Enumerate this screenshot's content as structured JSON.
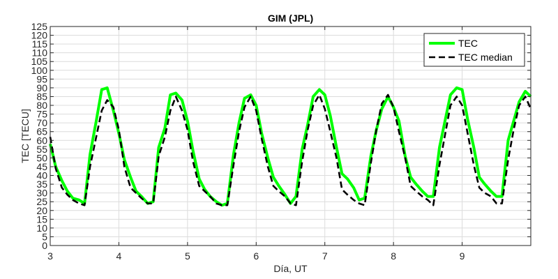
{
  "chart_data": {
    "type": "line",
    "title": "GIM (JPL)",
    "xlabel": "Día, UT",
    "ylabel": "TEC [TECU]",
    "xlim": [
      3,
      10
    ],
    "ylim": [
      0,
      125
    ],
    "x_ticks": [
      3,
      4,
      5,
      6,
      7,
      8,
      9
    ],
    "y_ticks": [
      0,
      5,
      10,
      15,
      20,
      25,
      30,
      35,
      40,
      45,
      50,
      55,
      60,
      65,
      70,
      75,
      80,
      85,
      90,
      95,
      100,
      105,
      110,
      115,
      120,
      125
    ],
    "grid": true,
    "legend_position": "top-right",
    "series": [
      {
        "name": "TEC",
        "color": "#00ff00",
        "style": "solid",
        "x": [
          3.0,
          3.08,
          3.17,
          3.25,
          3.33,
          3.42,
          3.5,
          3.58,
          3.67,
          3.75,
          3.83,
          3.92,
          4.0,
          4.08,
          4.17,
          4.25,
          4.33,
          4.42,
          4.5,
          4.58,
          4.67,
          4.75,
          4.83,
          4.92,
          5.0,
          5.08,
          5.17,
          5.25,
          5.33,
          5.42,
          5.5,
          5.58,
          5.67,
          5.75,
          5.83,
          5.92,
          6.0,
          6.08,
          6.17,
          6.25,
          6.33,
          6.42,
          6.5,
          6.58,
          6.67,
          6.75,
          6.83,
          6.92,
          7.0,
          7.08,
          7.17,
          7.25,
          7.33,
          7.42,
          7.5,
          7.58,
          7.67,
          7.75,
          7.83,
          7.92,
          8.0,
          8.08,
          8.17,
          8.25,
          8.33,
          8.42,
          8.5,
          8.58,
          8.67,
          8.75,
          8.83,
          8.92,
          9.0,
          9.08,
          9.17,
          9.25,
          9.33,
          9.42,
          9.5,
          9.58,
          9.67,
          9.75,
          9.83,
          9.92,
          10.0
        ],
        "values": [
          58,
          45,
          37,
          31,
          27,
          26,
          24,
          52,
          71,
          89,
          90,
          77,
          64,
          49,
          39,
          31,
          28,
          24,
          25,
          56,
          67,
          86,
          87,
          83,
          71,
          54,
          38,
          32,
          28,
          25,
          23,
          24,
          52,
          70,
          84,
          86,
          80,
          64,
          50,
          39,
          34,
          29,
          24,
          28,
          55,
          69,
          85,
          89,
          86,
          74,
          56,
          41,
          38,
          33,
          26,
          27,
          51,
          66,
          78,
          85,
          79,
          71,
          51,
          39,
          35,
          31,
          28,
          28,
          56,
          71,
          86,
          90,
          89,
          72,
          56,
          39,
          35,
          31,
          28,
          28,
          60,
          71,
          82,
          88,
          85
        ]
      },
      {
        "name": "TEC median",
        "color": "#000000",
        "style": "dashed",
        "x": [
          3.0,
          3.08,
          3.17,
          3.25,
          3.33,
          3.42,
          3.5,
          3.58,
          3.67,
          3.75,
          3.83,
          3.92,
          4.0,
          4.08,
          4.17,
          4.25,
          4.33,
          4.42,
          4.5,
          4.58,
          4.67,
          4.75,
          4.83,
          4.92,
          5.0,
          5.08,
          5.17,
          5.25,
          5.33,
          5.42,
          5.5,
          5.58,
          5.67,
          5.75,
          5.83,
          5.92,
          6.0,
          6.08,
          6.17,
          6.25,
          6.33,
          6.42,
          6.5,
          6.58,
          6.67,
          6.75,
          6.83,
          6.92,
          7.0,
          7.08,
          7.17,
          7.25,
          7.33,
          7.42,
          7.5,
          7.58,
          7.67,
          7.75,
          7.83,
          7.92,
          8.0,
          8.08,
          8.17,
          8.25,
          8.33,
          8.42,
          8.5,
          8.58,
          8.67,
          8.75,
          8.83,
          8.92,
          9.0,
          9.08,
          9.17,
          9.25,
          9.33,
          9.42,
          9.5,
          9.58,
          9.67,
          9.75,
          9.83,
          9.92,
          10.0
        ],
        "values": [
          62,
          44,
          33,
          29,
          26,
          24,
          23,
          45,
          62,
          77,
          83,
          79,
          66,
          45,
          33,
          30,
          27,
          24,
          24,
          51,
          62,
          77,
          85,
          77,
          66,
          48,
          34,
          31,
          28,
          24,
          23,
          23,
          46,
          65,
          79,
          85,
          77,
          61,
          45,
          34,
          31,
          28,
          24,
          23,
          48,
          66,
          80,
          86,
          78,
          65,
          50,
          32,
          29,
          26,
          24,
          23,
          47,
          66,
          81,
          86,
          79,
          65,
          50,
          34,
          31,
          28,
          26,
          23,
          46,
          63,
          80,
          85,
          80,
          64,
          46,
          33,
          30,
          28,
          24,
          24,
          49,
          66,
          80,
          85,
          78
        ]
      }
    ]
  }
}
